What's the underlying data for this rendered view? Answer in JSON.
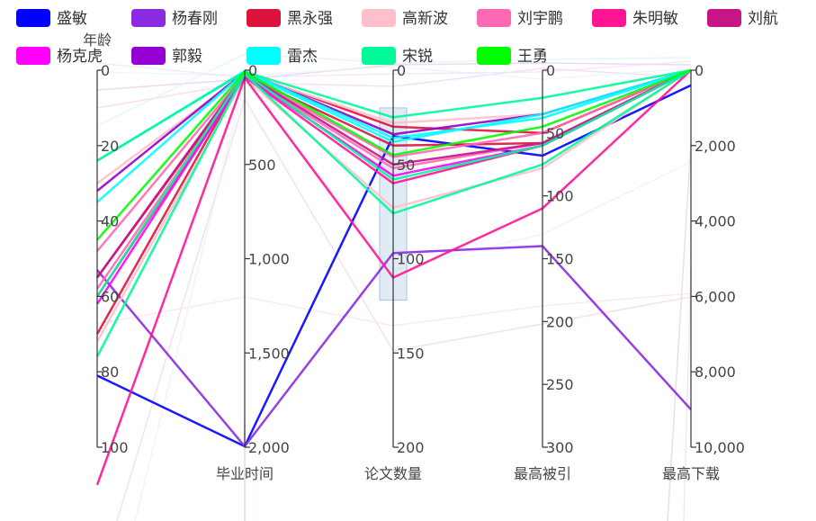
{
  "chart_data": {
    "type": "parallel",
    "dimensions": [
      {
        "name": "年龄",
        "min": 0,
        "max": 100,
        "ticks": [
          0,
          20,
          40,
          60,
          80,
          100
        ]
      },
      {
        "name": "毕业时间",
        "min": 0,
        "max": 2000,
        "ticks": [
          0,
          500,
          1000,
          1500,
          2000
        ]
      },
      {
        "name": "论文数量",
        "min": 0,
        "max": 200,
        "ticks": [
          0,
          50,
          100,
          150,
          200
        ]
      },
      {
        "name": "最高被引",
        "min": 0,
        "max": 300,
        "ticks": [
          0,
          50,
          100,
          150,
          200,
          250,
          300
        ]
      },
      {
        "name": "最高下载",
        "min": 0,
        "max": 10000,
        "ticks": [
          0,
          2000,
          4000,
          6000,
          8000,
          10000
        ]
      }
    ],
    "tick_labels": {
      "年龄": [
        "0",
        "20",
        "40",
        "60",
        "80",
        "100"
      ],
      "毕业时间": [
        "0",
        "500",
        "1,000",
        "1,500",
        "2,000"
      ],
      "论文数量": [
        "0",
        "50",
        "100",
        "150",
        "200"
      ],
      "最高被引": [
        "0",
        "50",
        "100",
        "150",
        "200",
        "250",
        "300"
      ],
      "最高下载": [
        "0",
        "2,000",
        "4,000",
        "6,000",
        "8,000",
        "10,000"
      ]
    },
    "brush": {
      "axis": "论文数量",
      "range": [
        20,
        122
      ]
    },
    "legend_position": "top",
    "series": [
      {
        "name": "盛敏",
        "color": "#0000FF",
        "values": [
          [
            81,
            1995,
            35,
            68,
            400
          ]
        ]
      },
      {
        "name": "杨春刚",
        "color": "#8A2BE2",
        "values": [
          [
            53,
            1995,
            97,
            140,
            9000
          ]
        ]
      },
      {
        "name": "黑永强",
        "color": "#DC143C",
        "values": [
          [
            70,
            15,
            30,
            50,
            0
          ],
          [
            55,
            30,
            40,
            58,
            0
          ]
        ]
      },
      {
        "name": "高新波",
        "color": "#FFC0CB",
        "values": [
          [
            30,
            20,
            28,
            35,
            0
          ],
          [
            72,
            40,
            73,
            78,
            0
          ]
        ]
      },
      {
        "name": "刘宇鹏",
        "color": "#FF69B4",
        "values": [
          [
            48,
            25,
            46,
            50,
            0
          ],
          [
            58,
            30,
            52,
            58,
            0
          ]
        ]
      },
      {
        "name": "朱明敏",
        "color": "#FF1493",
        "values": [
          [
            110,
            40,
            110,
            110,
            0
          ],
          [
            60,
            35,
            60,
            60,
            0
          ]
        ]
      },
      {
        "name": "刘航",
        "color": "#C71585",
        "values": [
          [
            55,
            20,
            50,
            58,
            0
          ]
        ]
      },
      {
        "name": "杨克虎",
        "color": "#FF00FF",
        "values": [
          [
            62,
            30,
            56,
            60,
            0
          ]
        ]
      },
      {
        "name": "郭毅",
        "color": "#9400D3",
        "values": [
          [
            32,
            10,
            34,
            35,
            0
          ]
        ]
      },
      {
        "name": "雷杰",
        "color": "#00FFFF",
        "values": [
          [
            24,
            5,
            36,
            38,
            0
          ],
          [
            35,
            10,
            38,
            35,
            0
          ]
        ]
      },
      {
        "name": "宋锐",
        "color": "#00FA9A",
        "values": [
          [
            24,
            8,
            25,
            22,
            0
          ],
          [
            76,
            20,
            76,
            75,
            0
          ],
          [
            60,
            15,
            58,
            60,
            0
          ]
        ]
      },
      {
        "name": "王勇",
        "color": "#00FF00",
        "values": [
          [
            45,
            10,
            45,
            45,
            0
          ]
        ]
      }
    ]
  }
}
